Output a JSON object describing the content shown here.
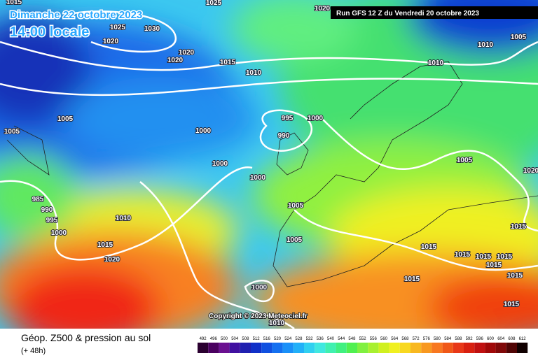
{
  "header": {
    "valid_date": "Dimanche 22 octobre 2023",
    "local_time": "14:00 locale",
    "run": "Run GFS 12 Z du Vendredi 20 octobre 2023",
    "copyright": "Copyright © 2023 Meteociel.fr"
  },
  "footer": {
    "title": "Géop. Z500 & pression au sol",
    "lead": "(+ 48h)"
  },
  "legend": {
    "labels": [
      492,
      496,
      500,
      504,
      508,
      512,
      516,
      520,
      524,
      528,
      532,
      536,
      540,
      544,
      548,
      552,
      556,
      560,
      564,
      568,
      572,
      576,
      580,
      584,
      588,
      592,
      596,
      600,
      604,
      608,
      612
    ]
  },
  "isobar_labels": [
    "1015",
    "1025",
    "1020",
    "1025",
    "1030",
    "1020",
    "1020",
    "1020",
    "1015",
    "1010",
    "1010",
    "1010",
    "1005",
    "995",
    "1000",
    "990",
    "1005",
    "1005",
    "1000",
    "1000",
    "1000",
    "1005",
    "1005",
    "985",
    "990",
    "995",
    "1000",
    "1010",
    "1015",
    "1020",
    "1005",
    "1015",
    "1015",
    "1015",
    "1015",
    "1015",
    "1015",
    "1015",
    "1015",
    "1000",
    "1015",
    "1010",
    "1020"
  ]
}
